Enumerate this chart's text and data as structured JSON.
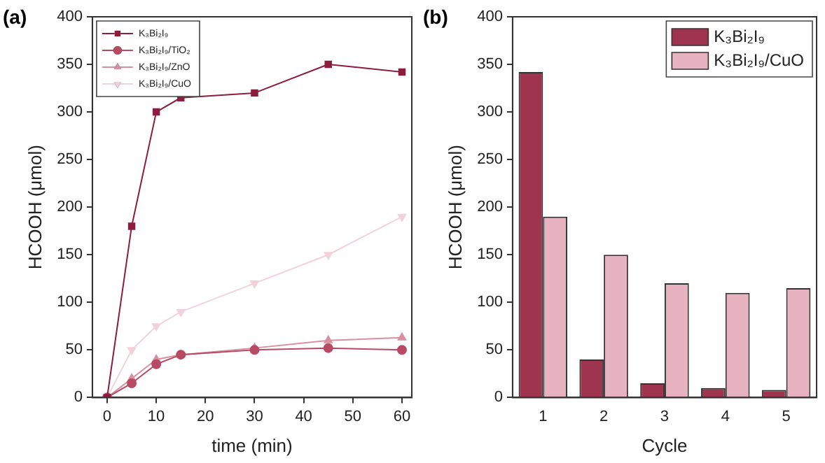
{
  "chart_data": [
    {
      "type": "line",
      "annotations": [
        "(a)"
      ],
      "xlabel": "time (min)",
      "ylabel": "HCOOH (μmol)",
      "xlim": [
        -3,
        62
      ],
      "xticks": [
        0,
        10,
        20,
        30,
        40,
        50,
        60
      ],
      "ylim": [
        0,
        400
      ],
      "yticks": [
        0,
        50,
        100,
        150,
        200,
        250,
        300,
        350,
        400
      ],
      "grid": false,
      "legend": "top left",
      "line_style": "solid",
      "x": [
        0,
        5,
        10,
        15,
        30,
        45,
        60
      ],
      "series": [
        {
          "name": "K₃Bi₂I₉",
          "color": "#8c1d3c",
          "marker": "square",
          "values": [
            0,
            180,
            300,
            315,
            320,
            350,
            342
          ]
        },
        {
          "name": "K₃Bi₂I₉/TiO₂",
          "color": "#b84a64",
          "marker": "circle",
          "values": [
            0,
            15,
            35,
            45,
            50,
            52,
            50
          ]
        },
        {
          "name": "K₃Bi₂I₉/ZnO",
          "color": "#d88fa0",
          "marker": "triangle",
          "values": [
            0,
            20,
            40,
            45,
            52,
            60,
            63
          ]
        },
        {
          "name": "K₃Bi₂I₉/CuO",
          "color": "#f2d2da",
          "marker": "triangle-down",
          "values": [
            0,
            50,
            75,
            90,
            120,
            150,
            190
          ]
        }
      ]
    },
    {
      "type": "bar",
      "annotations": [
        "(b)"
      ],
      "xlabel": "Cycle",
      "ylabel": "HCOOH (μmol)",
      "categories": [
        "1",
        "2",
        "3",
        "4",
        "5"
      ],
      "ylim": [
        0,
        400
      ],
      "yticks": [
        0,
        50,
        100,
        150,
        200,
        250,
        300,
        350,
        400
      ],
      "grid": false,
      "legend": "top right",
      "series": [
        {
          "name": "K₃Bi₂I₉",
          "color": "#9e344e",
          "values": [
            342,
            40,
            15,
            10,
            8
          ]
        },
        {
          "name": "K₃Bi₂I₉/CuO",
          "color": "#e8b3c0",
          "values": [
            190,
            150,
            120,
            110,
            115
          ]
        }
      ]
    }
  ]
}
